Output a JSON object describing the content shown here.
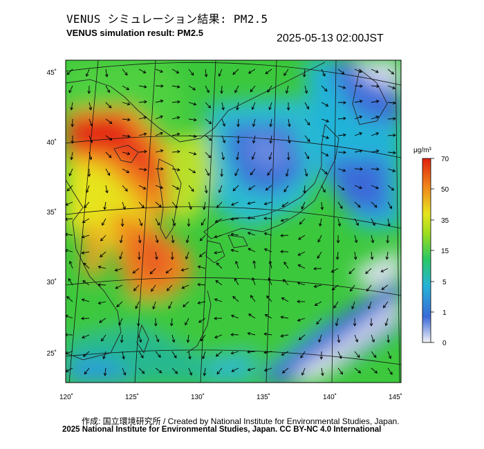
{
  "title_jp": "VENUS シミュレーション結果: PM2.5",
  "title_en": "VENUS simulation result: PM2.5",
  "timestamp": "2025-05-13 02:00JST",
  "credit_line_1": "作成: 国立環境研究所 / Created by National Institute for Environmental Studies, Japan.",
  "credit_line_2": "2025 National Institute for Environmental Studies, Japan. CC BY-NC 4.0 International",
  "map": {
    "lon_ticks": [
      "120˚",
      "125˚",
      "130˚",
      "135˚",
      "140˚",
      "145˚"
    ],
    "lat_ticks": [
      "45˚",
      "40˚",
      "35˚",
      "30˚",
      "25˚"
    ]
  },
  "colorbar": {
    "unit": "μg/m³",
    "labels": [
      "70",
      "50",
      "35",
      "15",
      "5",
      "1",
      "0"
    ],
    "colors": {
      "high": "#e8221a",
      "orange": "#f08a1c",
      "yellow": "#e6e41e",
      "green": "#3cc83c",
      "cyan": "#27b4d6",
      "blue": "#3a6ad8",
      "low": "#f2f2f6"
    }
  }
}
